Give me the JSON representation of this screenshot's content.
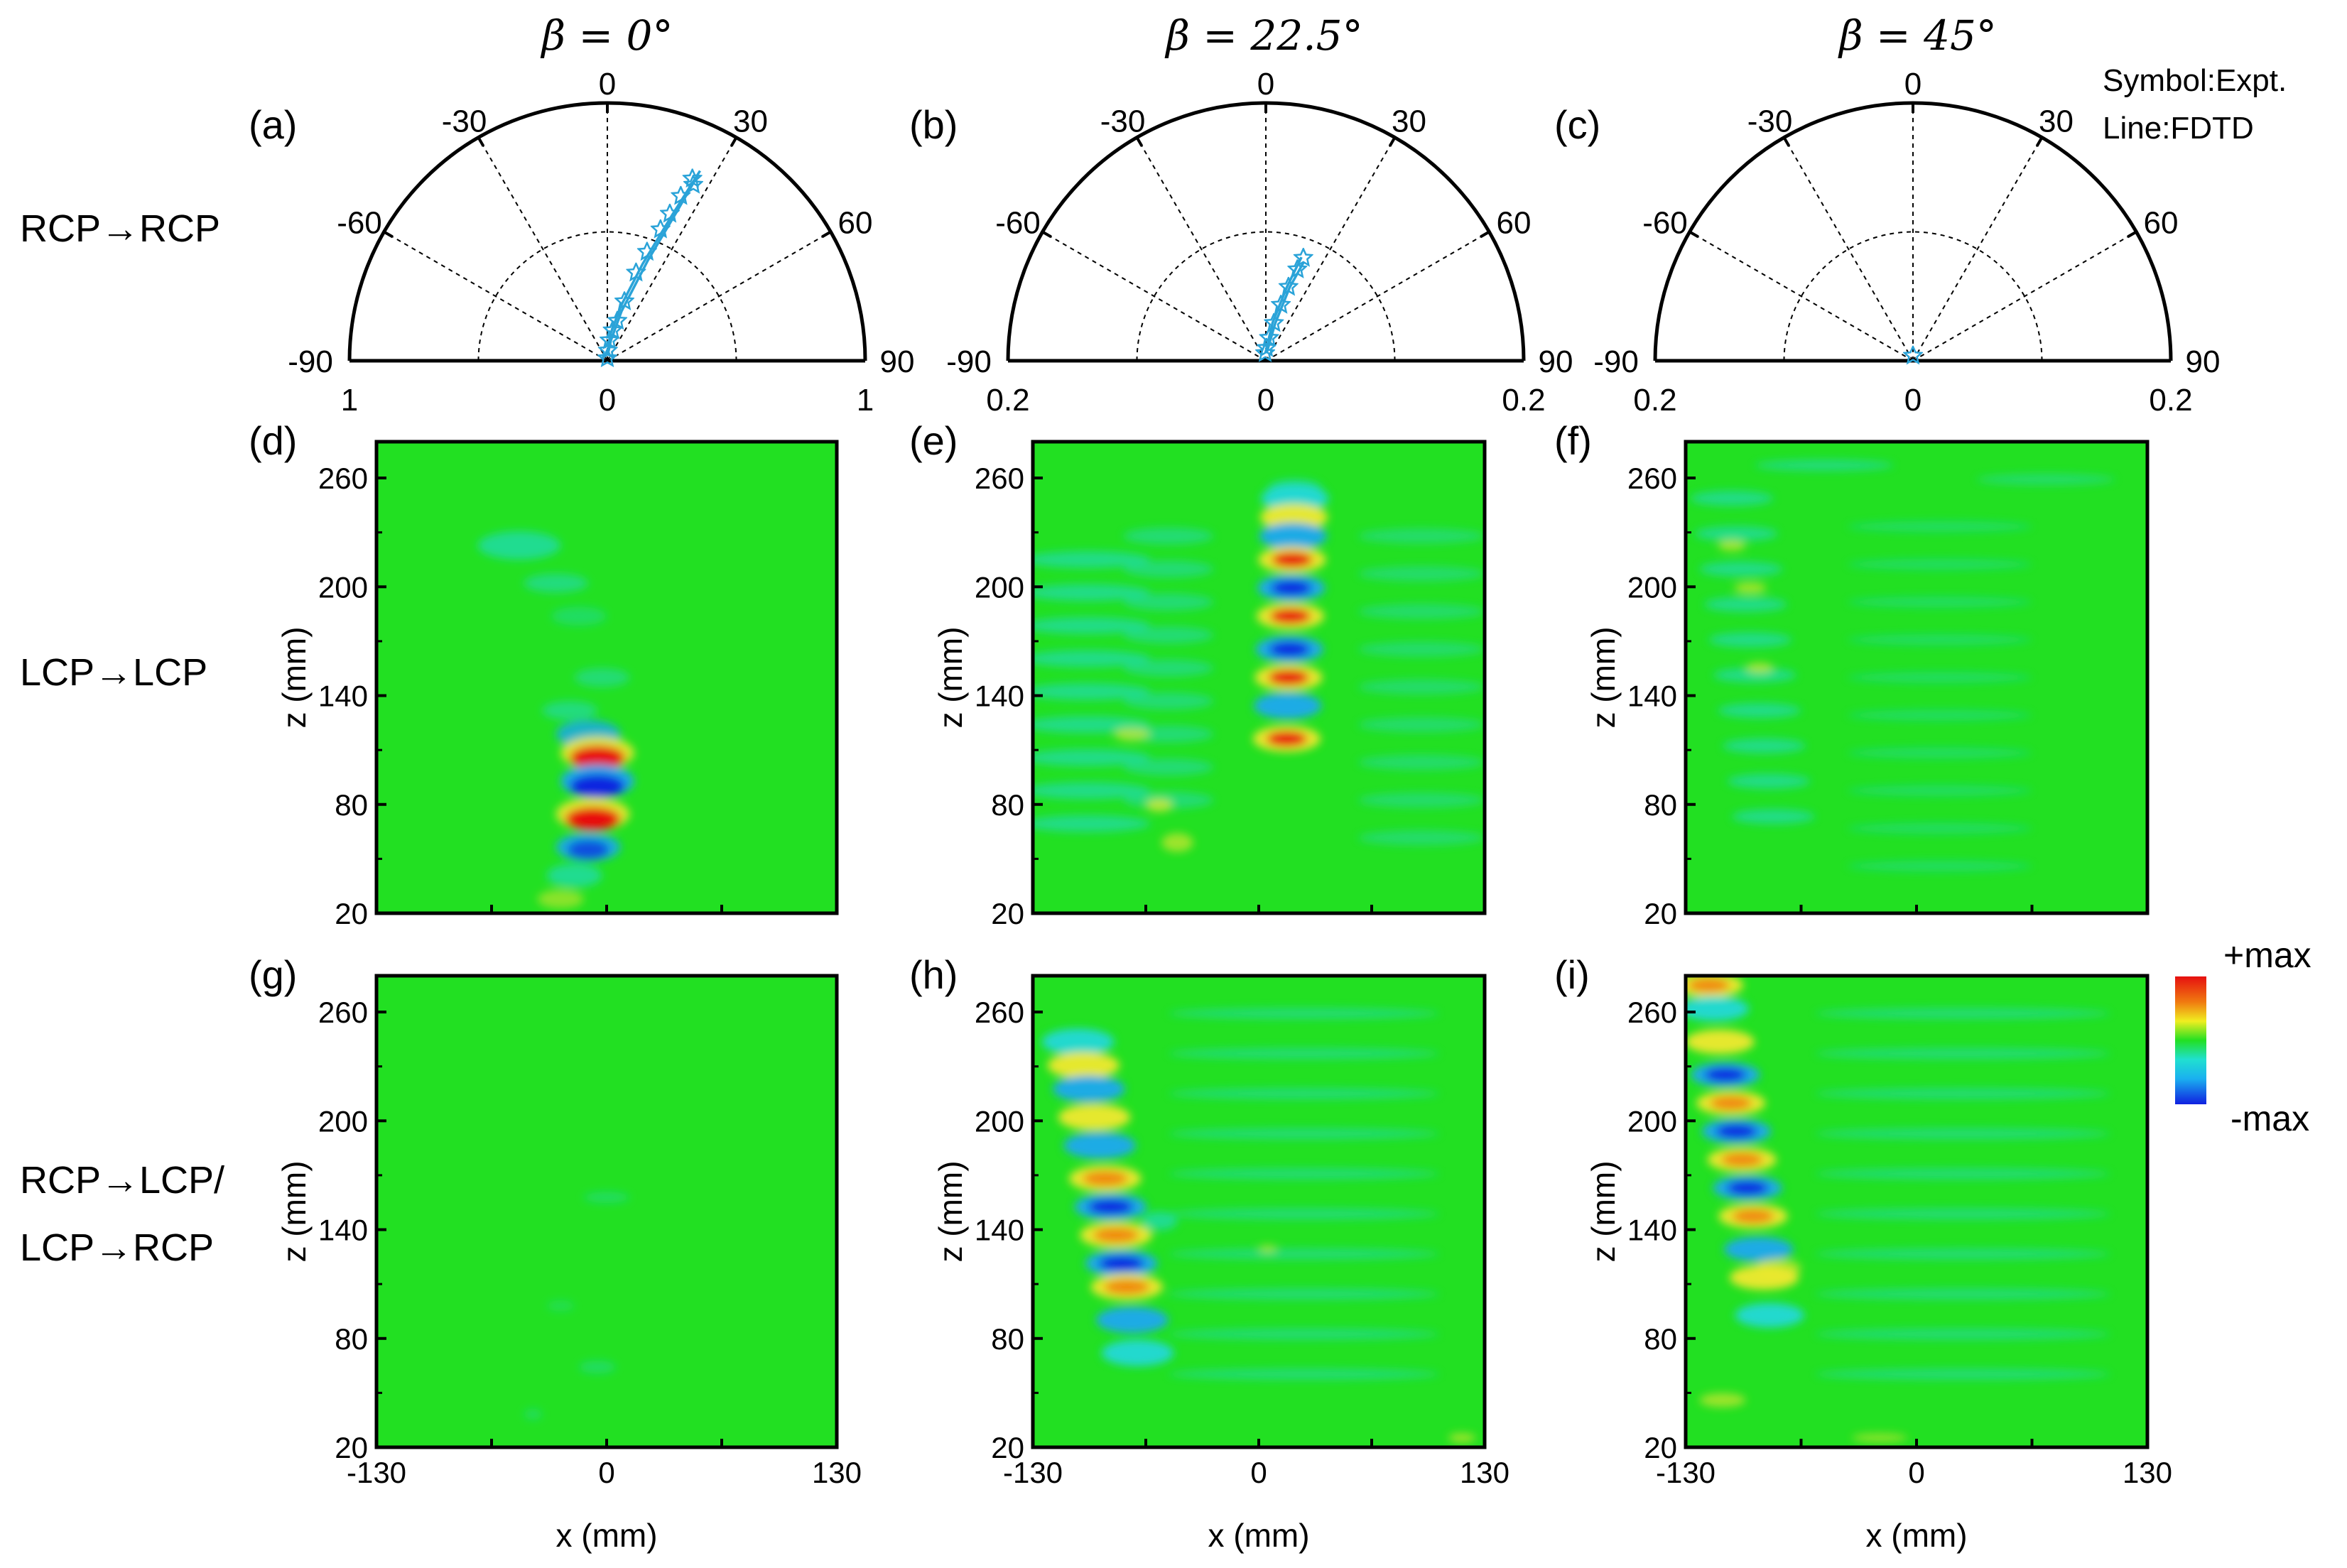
{
  "chart_data": {
    "type": "composite_figure",
    "columns": [
      {
        "beta": "0°",
        "title": "β = 0°"
      },
      {
        "beta": "22.5°",
        "title": "β = 22.5°"
      },
      {
        "beta": "45°",
        "title": "β = 45°"
      }
    ],
    "row_labels": [
      "RCP→RCP",
      "LCP→LCP",
      "RCP→LCP/",
      "LCP→RCP"
    ],
    "legend": {
      "line1": "Symbol:Expt.",
      "line2": "Line:FDTD"
    },
    "polar_plots": [
      {
        "panel": "(a)",
        "angle_ticks": [
          "-90",
          "-60",
          "-30",
          "0",
          "30",
          "60",
          "90"
        ],
        "radial_ticks": [
          "1",
          "0",
          "1"
        ],
        "rmax": 1,
        "beam_angle_deg": 25,
        "expt": [
          [
            0,
            0.01
          ],
          [
            3,
            0.04
          ],
          [
            6,
            0.08
          ],
          [
            10,
            0.12
          ],
          [
            14,
            0.16
          ],
          [
            16,
            0.24
          ],
          [
            18,
            0.36
          ],
          [
            20,
            0.45
          ],
          [
            22,
            0.55
          ],
          [
            23,
            0.62
          ],
          [
            24,
            0.7
          ],
          [
            25,
            0.78
          ],
          [
            26,
            0.76
          ]
        ],
        "fdtd_upper": [
          [
            -2,
            0.02
          ],
          [
            6,
            0.1
          ],
          [
            14,
            0.22
          ],
          [
            20,
            0.4
          ],
          [
            24,
            0.62
          ],
          [
            26,
            0.82
          ]
        ],
        "fdtd_lower": [
          [
            2,
            0.02
          ],
          [
            10,
            0.08
          ],
          [
            16,
            0.2
          ],
          [
            22,
            0.42
          ],
          [
            25,
            0.64
          ],
          [
            26,
            0.8
          ]
        ]
      },
      {
        "panel": "(b)",
        "angle_ticks": [
          "-90",
          "-60",
          "-30",
          "0",
          "30",
          "60",
          "90"
        ],
        "radial_ticks": [
          "0.2",
          "0",
          "0.2"
        ],
        "rmax": 0.2,
        "beam_angle_deg": 20,
        "expt": [
          [
            -5,
            0.006
          ],
          [
            3,
            0.01
          ],
          [
            8,
            0.018
          ],
          [
            12,
            0.03
          ],
          [
            15,
            0.045
          ],
          [
            17,
            0.06
          ],
          [
            19,
            0.075
          ],
          [
            20,
            0.085
          ]
        ],
        "fdtd_upper": [
          [
            -3,
            0.006
          ],
          [
            10,
            0.03
          ],
          [
            16,
            0.06
          ],
          [
            19,
            0.085
          ]
        ],
        "fdtd_lower": [
          [
            6,
            0.006
          ],
          [
            14,
            0.03
          ],
          [
            18,
            0.06
          ],
          [
            21,
            0.082
          ]
        ]
      },
      {
        "panel": "(c)",
        "angle_ticks": [
          "-90",
          "-60",
          "-30",
          "0",
          "30",
          "60",
          "90"
        ],
        "radial_ticks": [
          "0.2",
          "0",
          "0.2"
        ],
        "rmax": 0.2,
        "beam_angle_deg": 0,
        "expt": [
          [
            0,
            0.004
          ]
        ]
      }
    ],
    "field_maps": [
      {
        "panel": "(d)",
        "mode": "LCP→LCP",
        "beta": "0°"
      },
      {
        "panel": "(e)",
        "mode": "LCP→LCP",
        "beta": "22.5°"
      },
      {
        "panel": "(f)",
        "mode": "LCP→LCP",
        "beta": "45°"
      },
      {
        "panel": "(g)",
        "mode": "RCP→LCP/LCP→RCP",
        "beta": "0°"
      },
      {
        "panel": "(h)",
        "mode": "RCP→LCP/LCP→RCP",
        "beta": "22.5°"
      },
      {
        "panel": "(i)",
        "mode": "RCP→LCP/LCP→RCP",
        "beta": "45°"
      }
    ],
    "field_axes": {
      "xlabel": "x (mm)",
      "ylabel": "z (mm)",
      "xlim": [
        -130,
        130
      ],
      "ylim": [
        20,
        280
      ],
      "xticks": [
        "-130",
        "0",
        "130"
      ],
      "yticks": [
        "260",
        "200",
        "140",
        "80",
        "20"
      ]
    },
    "colorbar": {
      "max_label": "+max",
      "min_label": "-max"
    }
  },
  "colors": {
    "polar_line": "#2aa3d8",
    "background_field": "#22e022",
    "axis": "#000000"
  }
}
